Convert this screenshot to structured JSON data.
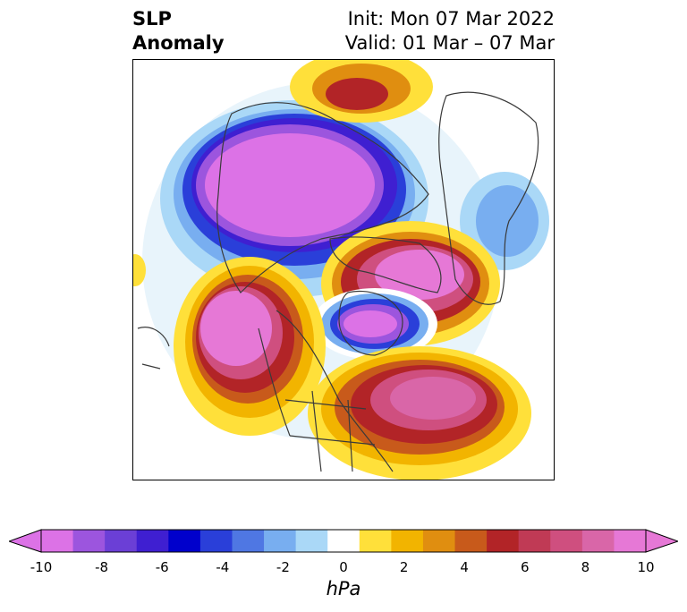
{
  "title": {
    "left": "SLP\nAnomaly",
    "init": "Init: Mon 07 Mar 2022",
    "valid": "Valid: 01 Mar – 07 Mar"
  },
  "colorbar": {
    "unit": "hPa",
    "ticks": [
      "-10",
      "-8",
      "-6",
      "-4",
      "-2",
      "0",
      "2",
      "4",
      "6",
      "8",
      "10"
    ],
    "colors": [
      "#dc72e6",
      "#9c55de",
      "#6b3fd6",
      "#3f1fd1",
      "#0000cc",
      "#2a3fd9",
      "#4f77e3",
      "#78aef0",
      "#aad8f7",
      "#ffffff",
      "#ffe03a",
      "#f2b400",
      "#e08e10",
      "#c85a1b",
      "#b22427",
      "#c03a55",
      "#cf4f7f",
      "#d966a8",
      "#e678d6"
    ],
    "extend_min_color": "#dc72e6",
    "extend_max_color": "#e678d6"
  },
  "map": {
    "projection": "polar-stereographic",
    "variable": "sea-level-pressure-anomaly"
  }
}
